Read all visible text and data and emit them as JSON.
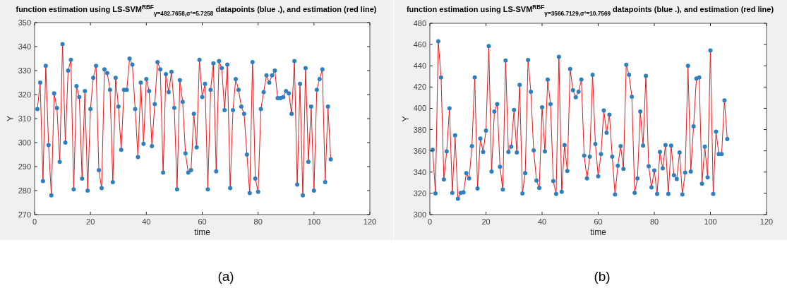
{
  "chart_data": [
    {
      "type": "line",
      "title": "function estimation using  LS-SVM$^{RBF}$$_{γ=482.7658,σ²=5.7258}$ datapoints (blue .), and estimation  (red line)",
      "xlabel": "time",
      "ylabel": "Y",
      "annotations": [
        "(a)"
      ],
      "x": [
        1,
        2,
        3,
        4,
        5,
        6,
        7,
        8,
        9,
        10,
        11,
        12,
        13,
        14,
        15,
        16,
        17,
        18,
        19,
        20,
        21,
        22,
        23,
        24,
        25,
        26,
        27,
        28,
        29,
        30,
        31,
        32,
        33,
        34,
        35,
        36,
        37,
        38,
        39,
        40,
        41,
        42,
        43,
        44,
        45,
        46,
        47,
        48,
        49,
        50,
        51,
        52,
        53,
        54,
        55,
        56,
        57,
        58,
        59,
        60,
        61,
        62,
        63,
        64,
        65,
        66,
        67,
        68,
        69,
        70,
        71,
        72,
        73,
        74,
        75,
        76,
        77,
        78,
        79,
        80,
        81,
        82,
        83,
        84,
        85,
        86,
        87,
        88,
        89,
        90,
        91,
        92,
        93,
        94,
        95,
        96,
        97,
        98,
        99,
        100,
        101,
        102,
        103,
        104,
        105,
        106
      ],
      "series": [
        {
          "type": "line",
          "color": "#e8191c",
          "marker": "none",
          "line_style": "solid",
          "values": [
            314,
            325,
            284,
            332,
            299,
            278,
            320.5,
            314.4,
            292,
            341,
            300,
            330,
            334.5,
            280.5,
            323.5,
            319,
            285,
            321.5,
            280,
            314,
            327,
            332,
            288.5,
            281,
            330.5,
            329,
            322,
            283.5,
            327,
            315,
            297,
            322,
            322,
            335,
            332.5,
            314,
            294,
            325,
            299.5,
            326.5,
            321.5,
            298.5,
            316,
            333.5,
            330.5,
            287.5,
            328.5,
            321,
            329.5,
            314.5,
            280.5,
            326,
            317,
            295.5,
            287.5,
            288.5,
            312,
            298,
            334.5,
            319,
            324.5,
            280.5,
            322,
            333,
            288,
            334,
            331,
            313.5,
            332.5,
            281,
            313.5,
            326.5,
            322,
            315,
            312,
            295,
            279,
            333.5,
            285,
            279.5,
            314,
            321,
            328,
            325,
            328,
            330,
            318.5,
            318.5,
            319,
            321.5,
            320.5,
            312,
            334,
            282.5,
            324.5,
            278,
            331,
            292,
            315,
            280,
            322,
            326.5,
            330.5,
            283.5,
            315,
            293
          ]
        },
        {
          "type": "scatter",
          "color": "#2e7fc0",
          "marker": "circle",
          "values": [
            314,
            325,
            284,
            332,
            299,
            278,
            320.5,
            314.4,
            292,
            341,
            300,
            330,
            334.5,
            280.5,
            323.5,
            319,
            285,
            321.5,
            280,
            314,
            327,
            332,
            288.5,
            281,
            330.5,
            329,
            322,
            283.5,
            327,
            315,
            297,
            322,
            322,
            335,
            332.5,
            314,
            294,
            325,
            299.5,
            326.5,
            321.5,
            298.5,
            316,
            333.5,
            330.5,
            287.5,
            328.5,
            321,
            329.5,
            314.5,
            280.5,
            326,
            317,
            295.5,
            287.5,
            288.5,
            312,
            298,
            334.5,
            319,
            324.5,
            280.5,
            322,
            333,
            288,
            334,
            331,
            313.5,
            332.5,
            281,
            313.5,
            326.5,
            322,
            315,
            312,
            295,
            279,
            333.5,
            285,
            279.5,
            314,
            321,
            328,
            325,
            328,
            330,
            318.5,
            318.5,
            319,
            321.5,
            320.5,
            312,
            334,
            282.5,
            324.5,
            278,
            331,
            292,
            315,
            280,
            322,
            326.5,
            330.5,
            283.5,
            315,
            293
          ]
        }
      ],
      "xlim": [
        0,
        120
      ],
      "xticks": [
        0,
        20,
        40,
        60,
        80,
        100,
        120
      ],
      "ylim": [
        270,
        350
      ],
      "yticks": [
        270,
        280,
        290,
        300,
        310,
        320,
        330,
        340,
        350
      ],
      "grid": false,
      "legend": false
    },
    {
      "type": "line",
      "title": "function estimation using  LS-SVM$^{RBF}$$_{γ=3566.7129,σ²=10.7569}$ datapoints (blue .), and estimation  (red line)",
      "xlabel": "time",
      "ylabel": "Y",
      "annotations": [
        "(b)"
      ],
      "x": [
        1,
        2,
        3,
        4,
        5,
        6,
        7,
        8,
        9,
        10,
        11,
        12,
        13,
        14,
        15,
        16,
        17,
        18,
        19,
        20,
        21,
        22,
        23,
        24,
        25,
        26,
        27,
        28,
        29,
        30,
        31,
        32,
        33,
        34,
        35,
        36,
        37,
        38,
        39,
        40,
        41,
        42,
        43,
        44,
        45,
        46,
        47,
        48,
        49,
        50,
        51,
        52,
        53,
        54,
        55,
        56,
        57,
        58,
        59,
        60,
        61,
        62,
        63,
        64,
        65,
        66,
        67,
        68,
        69,
        70,
        71,
        72,
        73,
        74,
        75,
        76,
        77,
        78,
        79,
        80,
        81,
        82,
        83,
        84,
        85,
        86,
        87,
        88,
        89,
        90,
        91,
        92,
        93,
        94,
        95,
        96,
        97,
        98,
        99,
        100,
        101,
        102,
        103,
        104,
        105,
        106
      ],
      "series": [
        {
          "type": "line",
          "color": "#e8191c",
          "marker": "none",
          "line_style": "solid",
          "values": [
            361,
            320,
            463,
            429,
            333,
            359.5,
            400,
            320.5,
            374.5,
            315,
            320.5,
            321,
            339,
            334,
            364.5,
            429,
            324.5,
            371.5,
            359,
            379,
            458.5,
            340.5,
            397,
            404,
            345,
            323.5,
            445,
            359,
            364,
            398.5,
            358.5,
            422,
            320,
            339,
            445.5,
            415.5,
            360.5,
            332,
            325,
            401,
            359.5,
            427,
            404,
            331.5,
            319.5,
            448.5,
            321.5,
            365.5,
            341,
            437,
            417,
            410.5,
            415.5,
            427,
            355.5,
            334,
            354.5,
            431.5,
            366.5,
            336,
            357,
            398,
            377,
            394,
            354.5,
            319,
            346,
            364.5,
            343,
            441,
            431.5,
            411,
            320.5,
            334,
            397,
            365,
            430.5,
            345.5,
            325.5,
            341.5,
            319.5,
            359,
            343.5,
            365.5,
            319.5,
            365,
            337,
            333.5,
            358.5,
            319,
            339.5,
            440,
            340.5,
            383,
            428,
            429,
            329,
            364,
            335,
            454.5,
            319.5,
            378,
            357,
            357,
            407.5,
            371
          ]
        },
        {
          "type": "scatter",
          "color": "#2e7fc0",
          "marker": "circle",
          "values": [
            361,
            320,
            463,
            429,
            333,
            359.5,
            400,
            320.5,
            374.5,
            315,
            320.5,
            321,
            339,
            334,
            364.5,
            429,
            324.5,
            371.5,
            359,
            379,
            458.5,
            340.5,
            397,
            404,
            345,
            323.5,
            445,
            359,
            364,
            398.5,
            358.5,
            422,
            320,
            339,
            445.5,
            415.5,
            360.5,
            332,
            325,
            401,
            359.5,
            427,
            404,
            331.5,
            319.5,
            448.5,
            321.5,
            365.5,
            341,
            437,
            417,
            410.5,
            415.5,
            427,
            355.5,
            334,
            354.5,
            431.5,
            366.5,
            336,
            357,
            398,
            377,
            394,
            354.5,
            319,
            346,
            364.5,
            343,
            441,
            431.5,
            411,
            320.5,
            334,
            397,
            365,
            430.5,
            345.5,
            325.5,
            341.5,
            319.5,
            359,
            343.5,
            365.5,
            319.5,
            365,
            337,
            333.5,
            358.5,
            319,
            339.5,
            440,
            340.5,
            383,
            428,
            429,
            329,
            364,
            335,
            454.5,
            319.5,
            378,
            357,
            357,
            407.5,
            371
          ]
        }
      ],
      "xlim": [
        0,
        120
      ],
      "xticks": [
        0,
        20,
        40,
        60,
        80,
        100,
        120
      ],
      "ylim": [
        300,
        480
      ],
      "yticks": [
        300,
        320,
        340,
        360,
        380,
        400,
        420,
        440,
        460,
        480
      ],
      "grid": false,
      "legend": false
    }
  ]
}
